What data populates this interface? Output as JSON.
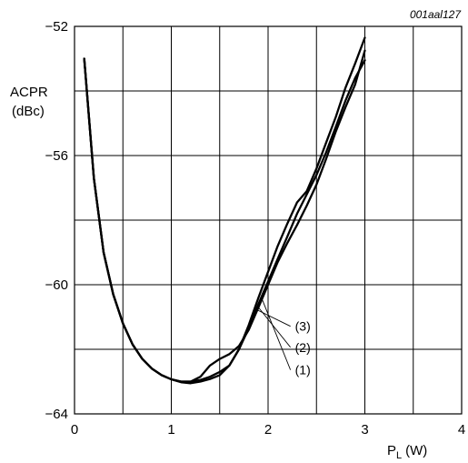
{
  "figure_id": "001aal127",
  "chart_data": {
    "type": "line",
    "title": "",
    "ylabel_line1": "ACPR",
    "ylabel_line2": "(dBc)",
    "xlabel_main": "P",
    "xlabel_sub": "L",
    "xlabel_unit": "(W)",
    "xlim": [
      0,
      4
    ],
    "ylim": [
      -64,
      -52
    ],
    "xticks": [
      0,
      1,
      2,
      3,
      4
    ],
    "xtick_labels": [
      "0",
      "1",
      "2",
      "3",
      "4"
    ],
    "yticks": [
      -64,
      -60,
      -56,
      -52
    ],
    "ytick_labels": [
      "−64",
      "−60",
      "−56",
      "−52"
    ],
    "x_minor_step": 0.5,
    "y_minor_step": 2,
    "grid": true,
    "series": [
      {
        "name": "(1)",
        "label_x": 1.93,
        "points": [
          [
            0.1,
            -53.0
          ],
          [
            0.2,
            -56.7
          ],
          [
            0.3,
            -59.0
          ],
          [
            0.4,
            -60.3
          ],
          [
            0.5,
            -61.2
          ],
          [
            0.6,
            -61.85
          ],
          [
            0.7,
            -62.3
          ],
          [
            0.8,
            -62.6
          ],
          [
            0.9,
            -62.8
          ],
          [
            1.0,
            -62.93
          ],
          [
            1.1,
            -63.02
          ],
          [
            1.2,
            -63.05
          ],
          [
            1.3,
            -63.0
          ],
          [
            1.4,
            -62.92
          ],
          [
            1.5,
            -62.8
          ],
          [
            1.6,
            -62.5
          ],
          [
            1.7,
            -62.0
          ],
          [
            1.8,
            -61.35
          ],
          [
            1.9,
            -60.6
          ],
          [
            2.0,
            -59.9
          ],
          [
            2.1,
            -59.2
          ],
          [
            2.2,
            -58.5
          ],
          [
            2.3,
            -57.8
          ],
          [
            2.4,
            -57.2
          ],
          [
            2.5,
            -56.6
          ],
          [
            2.6,
            -55.9
          ],
          [
            2.7,
            -55.1
          ],
          [
            2.8,
            -54.3
          ],
          [
            2.9,
            -53.6
          ],
          [
            3.0,
            -53.05
          ]
        ]
      },
      {
        "name": "(2)",
        "label_x": 1.9,
        "points": [
          [
            0.1,
            -53.0
          ],
          [
            0.2,
            -56.7
          ],
          [
            0.3,
            -59.0
          ],
          [
            0.4,
            -60.3
          ],
          [
            0.5,
            -61.2
          ],
          [
            0.6,
            -61.85
          ],
          [
            0.7,
            -62.3
          ],
          [
            0.8,
            -62.6
          ],
          [
            0.9,
            -62.8
          ],
          [
            1.0,
            -62.93
          ],
          [
            1.1,
            -63.0
          ],
          [
            1.2,
            -63.0
          ],
          [
            1.3,
            -62.85
          ],
          [
            1.4,
            -62.5
          ],
          [
            1.5,
            -62.3
          ],
          [
            1.6,
            -62.15
          ],
          [
            1.7,
            -61.9
          ],
          [
            1.8,
            -61.4
          ],
          [
            1.9,
            -60.7
          ],
          [
            2.0,
            -60.0
          ],
          [
            2.1,
            -59.3
          ],
          [
            2.2,
            -58.7
          ],
          [
            2.3,
            -58.15
          ],
          [
            2.4,
            -57.55
          ],
          [
            2.5,
            -56.9
          ],
          [
            2.6,
            -56.1
          ],
          [
            2.7,
            -55.25
          ],
          [
            2.8,
            -54.5
          ],
          [
            2.9,
            -53.8
          ],
          [
            3.0,
            -52.75
          ]
        ]
      },
      {
        "name": "(3)",
        "label_x": 1.86,
        "points": [
          [
            0.1,
            -53.0
          ],
          [
            0.2,
            -56.7
          ],
          [
            0.3,
            -59.0
          ],
          [
            0.4,
            -60.3
          ],
          [
            0.5,
            -61.2
          ],
          [
            0.6,
            -61.85
          ],
          [
            0.7,
            -62.3
          ],
          [
            0.8,
            -62.6
          ],
          [
            0.9,
            -62.8
          ],
          [
            1.0,
            -62.93
          ],
          [
            1.1,
            -63.0
          ],
          [
            1.2,
            -63.0
          ],
          [
            1.3,
            -62.95
          ],
          [
            1.4,
            -62.85
          ],
          [
            1.5,
            -62.7
          ],
          [
            1.6,
            -62.5
          ],
          [
            1.7,
            -62.0
          ],
          [
            1.8,
            -61.25
          ],
          [
            1.9,
            -60.4
          ],
          [
            2.0,
            -59.6
          ],
          [
            2.1,
            -58.8
          ],
          [
            2.2,
            -58.1
          ],
          [
            2.3,
            -57.45
          ],
          [
            2.4,
            -57.1
          ],
          [
            2.5,
            -56.4
          ],
          [
            2.6,
            -55.6
          ],
          [
            2.7,
            -54.8
          ],
          [
            2.8,
            -53.9
          ],
          [
            2.9,
            -53.15
          ],
          [
            3.0,
            -52.35
          ]
        ]
      }
    ],
    "callouts": [
      {
        "text": "(3)",
        "series_index": 2,
        "label_y": -61.4
      },
      {
        "text": "(2)",
        "series_index": 1,
        "label_y": -62.05
      },
      {
        "text": "(1)",
        "series_index": 0,
        "label_y": -62.75
      }
    ]
  }
}
